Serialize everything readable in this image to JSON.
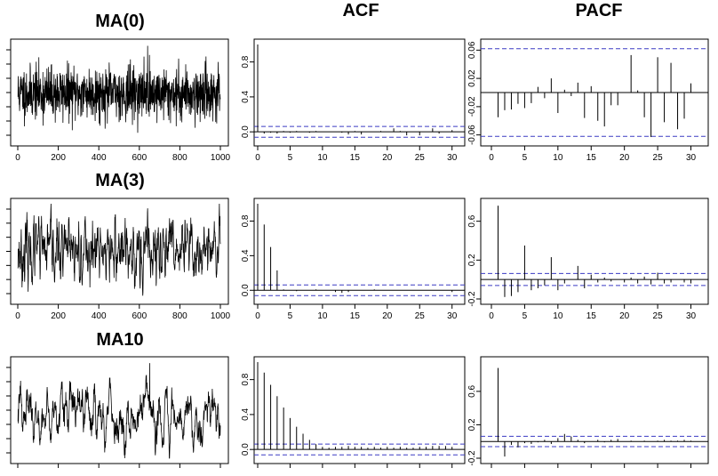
{
  "figure": {
    "row_titles": [
      "MA(0)",
      "MA(3)",
      "MA10"
    ],
    "col_titles": [
      "ACF",
      "PACF"
    ]
  },
  "chart_data": [
    {
      "type": "line",
      "name": "series-ma0",
      "title": "MA(0)",
      "n": 1000,
      "xlim": [
        0,
        1000
      ],
      "x_ticks": [
        0,
        200,
        400,
        600,
        800,
        1000
      ],
      "y_range": [
        -3.6,
        3.7
      ],
      "y_ticks_labeled": false,
      "seed": 11,
      "ma_order": 0,
      "outliers": [
        {
          "x": 640,
          "y": 3.6
        }
      ]
    },
    {
      "type": "bar",
      "name": "acf-ma0",
      "title": "ACF",
      "xlim": [
        0,
        31
      ],
      "ylim": [
        -0.1,
        1.0
      ],
      "x_ticks": [
        0,
        5,
        10,
        15,
        20,
        25,
        30
      ],
      "y_ticks": [
        0.0,
        0.4,
        0.8
      ],
      "lags": [
        0,
        1,
        2,
        3,
        4,
        5,
        6,
        7,
        8,
        9,
        10,
        11,
        12,
        13,
        14,
        15,
        16,
        17,
        18,
        19,
        20,
        21,
        22,
        23,
        24,
        25,
        26,
        27,
        28,
        29,
        30
      ],
      "values": [
        1.0,
        -0.02,
        -0.01,
        -0.02,
        0.01,
        -0.01,
        0.01,
        0.0,
        -0.01,
        0.01,
        0.0,
        0.0,
        0.0,
        -0.01,
        -0.03,
        0.01,
        -0.03,
        0.0,
        0.0,
        0.01,
        0.0,
        0.04,
        0.01,
        -0.04,
        0.0,
        -0.04,
        0.0,
        0.04,
        -0.02,
        0.0,
        0.02
      ],
      "conf": 0.062
    },
    {
      "type": "bar",
      "name": "pacf-ma0",
      "title": "PACF",
      "xlim": [
        0,
        31
      ],
      "ylim": [
        -0.068,
        0.068
      ],
      "x_ticks": [
        0,
        5,
        10,
        15,
        20,
        25,
        30
      ],
      "y_ticks": [
        -0.06,
        -0.02,
        0.02,
        0.06
      ],
      "lags": [
        1,
        2,
        3,
        4,
        5,
        6,
        7,
        8,
        9,
        10,
        11,
        12,
        13,
        14,
        15,
        16,
        17,
        18,
        19,
        20,
        21,
        22,
        23,
        24,
        25,
        26,
        27,
        28,
        29,
        30
      ],
      "values": [
        -0.035,
        -0.025,
        -0.024,
        -0.016,
        -0.022,
        -0.015,
        0.008,
        -0.008,
        0.02,
        -0.029,
        0.004,
        -0.005,
        0.014,
        -0.036,
        0.009,
        -0.04,
        -0.048,
        -0.018,
        -0.018,
        0.0,
        0.053,
        0.003,
        -0.035,
        -0.063,
        0.05,
        -0.042,
        0.042,
        -0.052,
        -0.037,
        0.013
      ],
      "conf": 0.062
    },
    {
      "type": "line",
      "name": "series-ma3",
      "title": "MA(3)",
      "n": 1000,
      "xlim": [
        0,
        1000
      ],
      "x_ticks": [
        0,
        200,
        400,
        600,
        800,
        1000
      ],
      "y_range": [
        -6.2,
        6.2
      ],
      "y_ticks_labeled": false,
      "seed": 23,
      "ma_order": 3,
      "outliers": [
        {
          "x": 640,
          "y": 5.6
        }
      ]
    },
    {
      "type": "bar",
      "name": "acf-ma3",
      "title": "ACF",
      "xlim": [
        0,
        31
      ],
      "ylim": [
        -0.1,
        1.0
      ],
      "x_ticks": [
        0,
        5,
        10,
        15,
        20,
        25,
        30
      ],
      "y_ticks": [
        0.0,
        0.4,
        0.8
      ],
      "lags": [
        0,
        1,
        2,
        3,
        4,
        5,
        6,
        7,
        8,
        9,
        10,
        11,
        12,
        13,
        14,
        15,
        16,
        17,
        18,
        19,
        20,
        21,
        22,
        23,
        24,
        25,
        26,
        27,
        28,
        29,
        30
      ],
      "values": [
        1.0,
        0.76,
        0.5,
        0.23,
        0.01,
        0.0,
        -0.01,
        0.0,
        0.0,
        0.01,
        0.0,
        0.0,
        -0.02,
        -0.03,
        -0.02,
        0.0,
        0.0,
        0.0,
        0.01,
        0.0,
        0.0,
        0.0,
        0.0,
        0.0,
        0.0,
        0.0,
        0.0,
        0.0,
        0.0,
        0.0,
        -0.02
      ],
      "conf": 0.062
    },
    {
      "type": "bar",
      "name": "pacf-ma3",
      "title": "PACF",
      "xlim": [
        0,
        31
      ],
      "ylim": [
        -0.2,
        0.78
      ],
      "x_ticks": [
        0,
        5,
        10,
        15,
        20,
        25,
        30
      ],
      "y_ticks": [
        -0.2,
        0.2,
        0.6
      ],
      "lags": [
        1,
        2,
        3,
        4,
        5,
        6,
        7,
        8,
        9,
        10,
        11,
        12,
        13,
        14,
        15,
        16,
        17,
        18,
        19,
        20,
        21,
        22,
        23,
        24,
        25,
        26,
        27,
        28,
        29,
        30
      ],
      "values": [
        0.76,
        -0.18,
        -0.17,
        -0.13,
        0.35,
        -0.11,
        -0.09,
        -0.06,
        0.23,
        -0.11,
        -0.04,
        0.0,
        0.14,
        -0.09,
        0.05,
        -0.03,
        0.02,
        -0.02,
        0.0,
        -0.03,
        0.02,
        -0.04,
        0.03,
        -0.05,
        0.07,
        -0.04,
        -0.03,
        0.0,
        -0.03,
        -0.04
      ],
      "conf": 0.062
    },
    {
      "type": "line",
      "name": "series-ma10",
      "title": "MA10",
      "n": 1000,
      "xlim": [
        0,
        1000
      ],
      "x_ticks": [
        0,
        200,
        400,
        600,
        800,
        1000
      ],
      "x_ticks_labeled": false,
      "y_range": [
        -9.5,
        10.5
      ],
      "y_ticks_labeled": false,
      "seed": 37,
      "ma_order": 10,
      "outliers": [
        {
          "x": 650,
          "y": 10.3
        }
      ]
    },
    {
      "type": "bar",
      "name": "acf-ma10",
      "title": "ACF",
      "xlim": [
        0,
        31
      ],
      "ylim": [
        -0.1,
        1.0
      ],
      "x_ticks": [
        0,
        5,
        10,
        15,
        20,
        25,
        30
      ],
      "x_ticks_labeled": false,
      "y_ticks": [
        0.0,
        0.4,
        0.8
      ],
      "lags": [
        0,
        1,
        2,
        3,
        4,
        5,
        6,
        7,
        8,
        9,
        10,
        11,
        12,
        13,
        14,
        15,
        16,
        17,
        18,
        19,
        20,
        21,
        22,
        23,
        24,
        25,
        26,
        27,
        28,
        29,
        30
      ],
      "values": [
        1.0,
        0.88,
        0.74,
        0.61,
        0.48,
        0.36,
        0.26,
        0.18,
        0.11,
        0.06,
        0.03,
        0.02,
        0.03,
        0.03,
        0.04,
        0.03,
        0.03,
        0.02,
        0.03,
        0.02,
        0.03,
        0.02,
        0.03,
        0.02,
        0.02,
        0.03,
        0.03,
        0.04,
        0.04,
        0.04,
        0.03
      ],
      "conf": 0.062
    },
    {
      "type": "bar",
      "name": "pacf-ma10",
      "title": "PACF",
      "xlim": [
        0,
        31
      ],
      "ylim": [
        -0.2,
        0.95
      ],
      "x_ticks": [
        0,
        5,
        10,
        15,
        20,
        25,
        30
      ],
      "x_ticks_labeled": false,
      "y_ticks": [
        -0.2,
        0.2,
        0.6
      ],
      "lags": [
        1,
        2,
        3,
        4,
        5,
        6,
        7,
        8,
        9,
        10,
        11,
        12,
        13,
        14,
        15,
        16,
        17,
        18,
        19,
        20,
        21,
        22,
        23,
        24,
        25,
        26,
        27,
        28,
        29,
        30
      ],
      "values": [
        0.88,
        -0.18,
        -0.04,
        -0.07,
        -0.02,
        -0.03,
        -0.01,
        0.02,
        -0.03,
        0.04,
        0.09,
        0.06,
        0.02,
        -0.02,
        0.0,
        0.02,
        -0.01,
        0.02,
        0.03,
        0.0,
        0.01,
        0.0,
        0.01,
        0.0,
        0.01,
        0.02,
        0.01,
        0.01,
        0.02,
        0.01
      ],
      "conf": 0.062
    }
  ]
}
